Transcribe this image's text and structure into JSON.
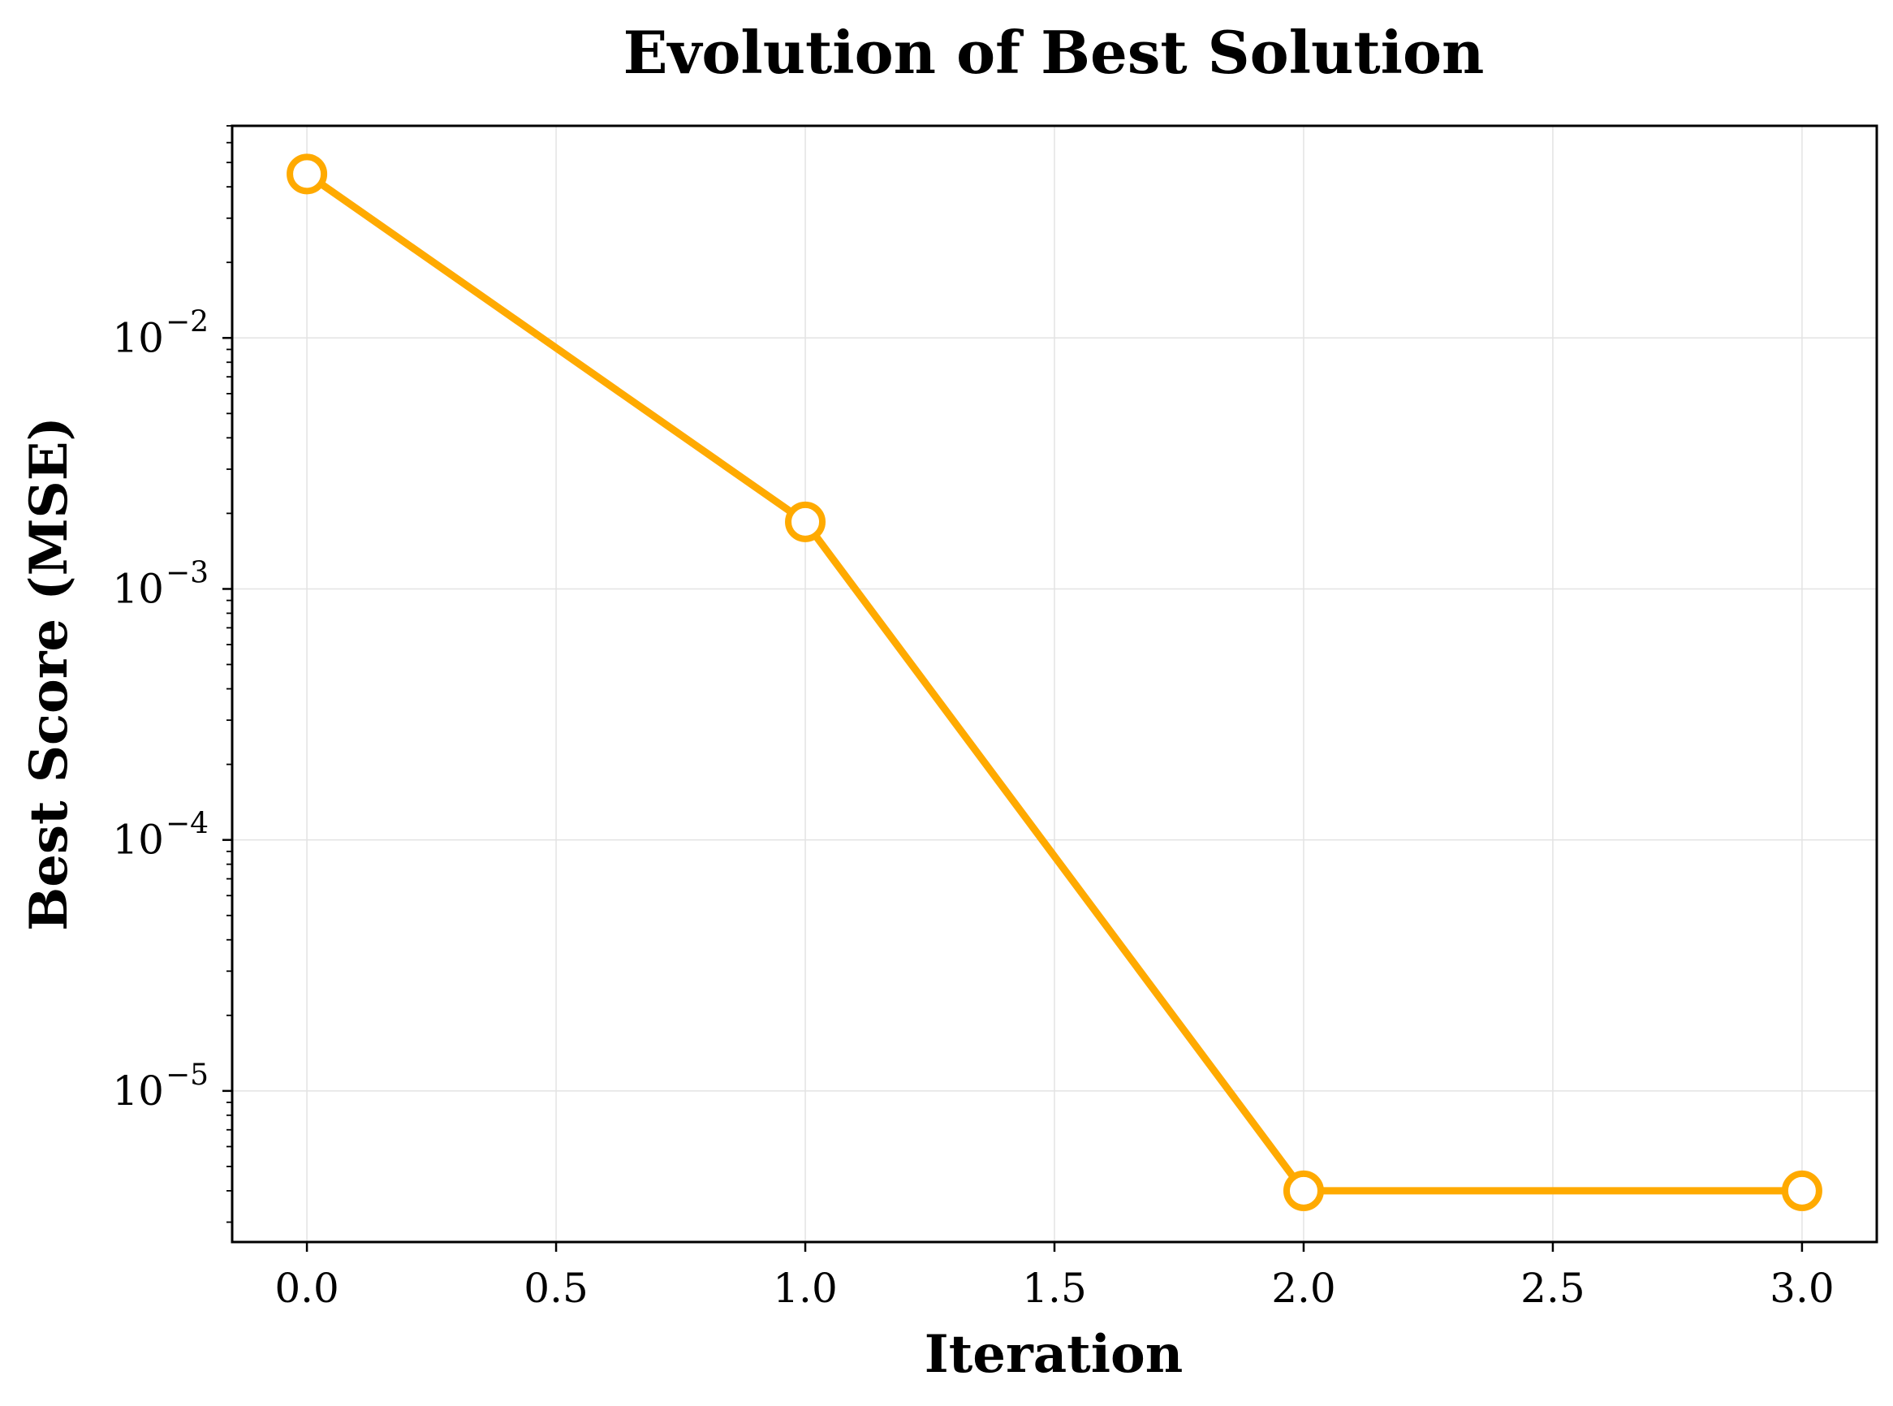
{
  "chart_data": {
    "type": "line",
    "title": "Evolution of Best Solution",
    "xlabel": "Iteration",
    "ylabel": "Best Score (MSE)",
    "yscale": "log",
    "grid": true,
    "legend": "none",
    "x": [
      0,
      1,
      2,
      3
    ],
    "series": [
      {
        "values": [
          0.045,
          0.00185,
          4e-06,
          4e-06
        ],
        "color": "#FFAA00",
        "marker": "open-circle"
      }
    ],
    "xlim": [
      -0.15,
      3.15
    ],
    "ylim": [
      2.5e-06,
      0.07
    ],
    "xticks": [
      0.0,
      0.5,
      1.0,
      1.5,
      2.0,
      2.5,
      3.0
    ],
    "xtick_labels": [
      "0.0",
      "0.5",
      "1.0",
      "1.5",
      "2.0",
      "2.5",
      "3.0"
    ],
    "yticks": [
      0.01,
      0.001,
      0.0001,
      1e-05
    ],
    "ytick_labels": [
      {
        "base": "10",
        "exp": "−2"
      },
      {
        "base": "10",
        "exp": "−3"
      },
      {
        "base": "10",
        "exp": "−4"
      },
      {
        "base": "10",
        "exp": "−5"
      }
    ]
  }
}
